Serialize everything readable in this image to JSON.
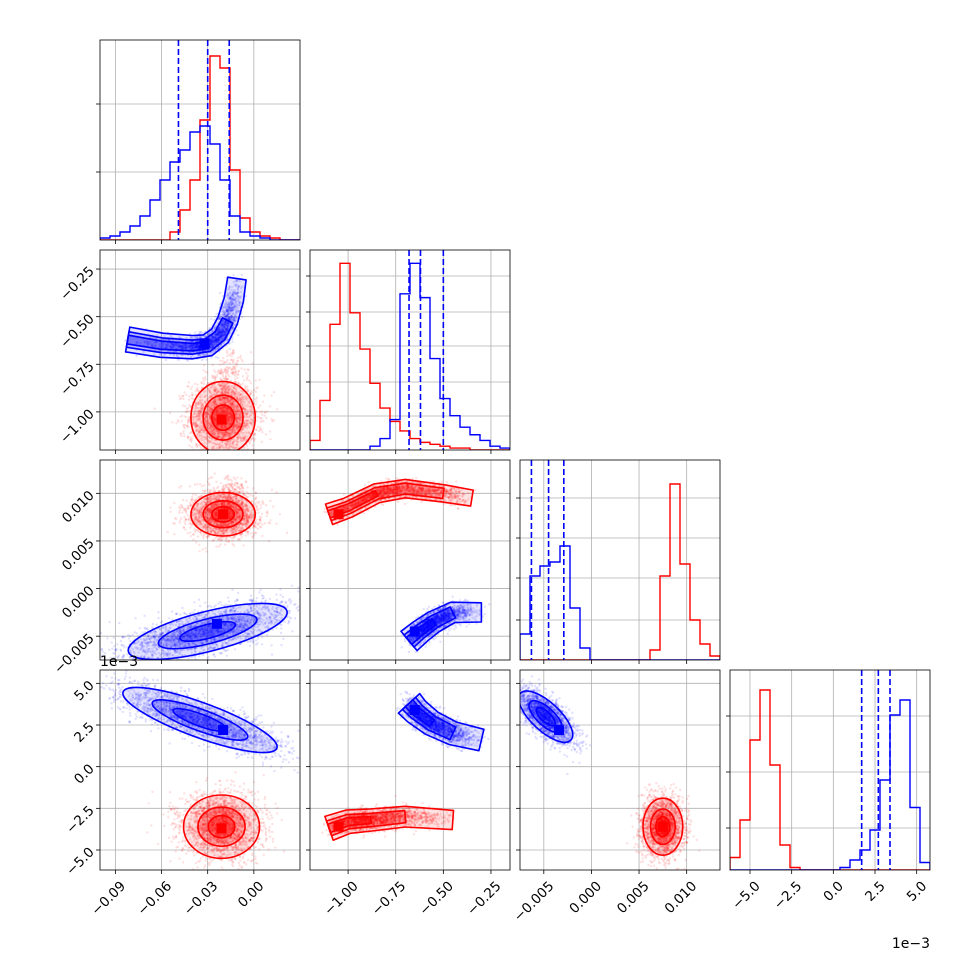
{
  "chart_data": {
    "type": "corner",
    "colors": {
      "blue": "#0000ff",
      "red": "#ff0000"
    },
    "grid": true,
    "parameters": [
      {
        "range": [
          -0.1,
          0.03
        ],
        "ticks": [
          -0.09,
          -0.06,
          -0.03,
          0.0
        ],
        "tick_labels": [
          "−0.09",
          "−0.06",
          "−0.03",
          "0.00"
        ],
        "offset_label": ""
      },
      {
        "range": [
          -1.2,
          -0.15
        ],
        "ticks": [
          -1.0,
          -0.75,
          -0.5,
          -0.25
        ],
        "tick_labels": [
          "−1.00",
          "−0.75",
          "−0.50",
          "−0.25"
        ],
        "offset_label": ""
      },
      {
        "range": [
          -0.0075,
          0.0135
        ],
        "ticks": [
          -0.005,
          0.0,
          0.005,
          0.01
        ],
        "tick_labels": [
          "−0.005",
          "0.000",
          "0.005",
          "0.010"
        ],
        "offset_label": ""
      },
      {
        "range": [
          -6.2,
          5.8
        ],
        "ticks": [
          -5.0,
          -2.5,
          0.0,
          2.5,
          5.0
        ],
        "tick_labels": [
          "−5.0",
          "−2.5",
          "0.0",
          "2.5",
          "5.0"
        ],
        "offset_label": "1e−3"
      }
    ],
    "histograms": [
      {
        "blue": {
          "edges_start": -0.1,
          "bin_width": 0.0065,
          "counts": [
            0.01,
            0.02,
            0.04,
            0.07,
            0.12,
            0.2,
            0.3,
            0.39,
            0.45,
            0.54,
            0.57,
            0.48,
            0.3,
            0.12,
            0.04,
            0.02,
            0.01,
            0.0,
            0.0,
            0.0
          ],
          "quantiles": [
            -0.049,
            -0.03,
            -0.016
          ]
        },
        "red": {
          "edges_start": -0.1,
          "bin_width": 0.0065,
          "counts": [
            0.0,
            0.0,
            0.0,
            0.0,
            0.0,
            0.0,
            0.0,
            0.04,
            0.15,
            0.3,
            0.6,
            0.92,
            0.86,
            0.35,
            0.11,
            0.04,
            0.02,
            0.01,
            0.0,
            0.0
          ],
          "quantiles": []
        },
        "ymax": 1.0
      },
      {
        "blue": {
          "edges_start": -1.2,
          "bin_width": 0.0525,
          "counts": [
            0.0,
            0.0,
            0.0,
            0.0,
            0.0,
            0.0,
            0.02,
            0.06,
            0.16,
            0.82,
            0.98,
            0.8,
            0.48,
            0.27,
            0.18,
            0.12,
            0.08,
            0.05,
            0.02,
            0.01
          ],
          "quantiles": [
            -0.68,
            -0.62,
            -0.5
          ]
        },
        "red": {
          "edges_start": -1.2,
          "bin_width": 0.0525,
          "counts": [
            0.05,
            0.26,
            0.66,
            0.98,
            0.72,
            0.53,
            0.35,
            0.22,
            0.15,
            0.1,
            0.06,
            0.04,
            0.03,
            0.02,
            0.01,
            0.01,
            0.0,
            0.0,
            0.0,
            0.0
          ],
          "quantiles": []
        },
        "ymax": 1.05
      },
      {
        "blue": {
          "edges_start": -0.0075,
          "bin_width": 0.00105,
          "counts": [
            0.13,
            0.42,
            0.47,
            0.49,
            0.57,
            0.26,
            0.06,
            0.0,
            0.0,
            0.0,
            0.0,
            0.0,
            0.0,
            0.0,
            0.0,
            0.0,
            0.0,
            0.0,
            0.0,
            0.0
          ],
          "quantiles": [
            -0.0063,
            -0.0045,
            -0.0029
          ]
        },
        "red": {
          "edges_start": -0.0075,
          "bin_width": 0.00105,
          "counts": [
            0.0,
            0.0,
            0.0,
            0.0,
            0.0,
            0.0,
            0.0,
            0.0,
            0.0,
            0.0,
            0.0,
            0.0,
            0.0,
            0.05,
            0.42,
            0.88,
            0.48,
            0.2,
            0.08,
            0.02
          ],
          "quantiles": []
        },
        "ymax": 1.0
      },
      {
        "blue": {
          "edges_start": -6.2,
          "bin_width": 0.6,
          "counts": [
            0.0,
            0.0,
            0.0,
            0.0,
            0.0,
            0.0,
            0.0,
            0.0,
            0.0,
            0.0,
            0.0,
            0.01,
            0.04,
            0.08,
            0.16,
            0.36,
            0.62,
            0.68,
            0.25,
            0.03
          ],
          "quantiles": [
            1.7,
            2.7,
            3.4
          ]
        },
        "red": {
          "edges_start": -6.2,
          "bin_width": 0.6,
          "counts": [
            0.05,
            0.2,
            0.52,
            0.72,
            0.42,
            0.1,
            0.01,
            0.0,
            0.0,
            0.0,
            0.0,
            0.0,
            0.0,
            0.0,
            0.0,
            0.0,
            0.0,
            0.0,
            0.0,
            0.0
          ],
          "quantiles": []
        },
        "ymax": 0.8
      }
    ],
    "pairs": [
      {
        "row": 1,
        "col": 0,
        "blue": {
          "type": "banana",
          "pts": [
            [
              -0.082,
              -0.62
            ],
            [
              -0.06,
              -0.65
            ],
            [
              -0.04,
              -0.66
            ],
            [
              -0.03,
              -0.65
            ],
            [
              -0.022,
              -0.6
            ],
            [
              -0.017,
              -0.52
            ],
            [
              -0.013,
              -0.41
            ],
            [
              -0.011,
              -0.3
            ]
          ],
          "width": 0.07,
          "peak": [
            -0.032,
            -0.64
          ]
        },
        "red": {
          "type": "blob",
          "center": [
            -0.02,
            -1.03
          ],
          "rx": 0.011,
          "ry": 0.1,
          "tail": [
            -0.015,
            -0.72
          ],
          "peak": [
            -0.021,
            -1.04
          ]
        }
      },
      {
        "row": 2,
        "col": 0,
        "blue": {
          "type": "ellipse",
          "center": [
            -0.03,
            -0.0045
          ],
          "rx": 0.028,
          "ry": 0.0011,
          "angle": 0.25,
          "peak": [
            -0.024,
            -0.0037
          ]
        },
        "red": {
          "type": "blob",
          "center": [
            -0.02,
            0.0078
          ],
          "rx": 0.011,
          "ry": 0.0012,
          "tail": [
            -0.014,
            0.011
          ],
          "peak": [
            -0.02,
            0.0078
          ]
        }
      },
      {
        "row": 3,
        "col": 0,
        "blue": {
          "type": "ellipse",
          "center": [
            -0.035,
            2.8
          ],
          "rx": 0.028,
          "ry": 0.55,
          "angle": -0.35,
          "peak": [
            -0.02,
            2.2
          ]
        },
        "red": {
          "type": "blob",
          "center": [
            -0.021,
            -3.6
          ],
          "rx": 0.013,
          "ry": 1.0,
          "tail": [
            -0.021,
            -2.6
          ],
          "peak": [
            -0.021,
            -3.7
          ]
        }
      },
      {
        "row": 2,
        "col": 1,
        "blue": {
          "type": "banana",
          "pts": [
            [
              -0.68,
              -0.0055
            ],
            [
              -0.62,
              -0.0045
            ],
            [
              -0.55,
              -0.0035
            ],
            [
              -0.45,
              -0.0025
            ],
            [
              -0.3,
              -0.0025
            ]
          ],
          "width": 0.07,
          "peak": [
            -0.65,
            -0.0045
          ]
        },
        "red": {
          "type": "banana",
          "pts": [
            [
              -1.1,
              0.0078
            ],
            [
              -1.0,
              0.0085
            ],
            [
              -0.85,
              0.01
            ],
            [
              -0.7,
              0.0105
            ],
            [
              -0.5,
              0.01
            ],
            [
              -0.35,
              0.0095
            ]
          ],
          "width": 0.06,
          "peak": [
            -1.05,
            0.0078
          ]
        }
      },
      {
        "row": 3,
        "col": 1,
        "blue": {
          "type": "banana",
          "pts": [
            [
              -0.68,
              3.8
            ],
            [
              -0.64,
              3.3
            ],
            [
              -0.56,
              2.6
            ],
            [
              -0.45,
              2.0
            ],
            [
              -0.3,
              1.6
            ]
          ],
          "width": 0.08,
          "peak": [
            -0.65,
            3.4
          ]
        },
        "red": {
          "type": "banana",
          "pts": [
            [
              -1.1,
              -3.7
            ],
            [
              -1.0,
              -3.3
            ],
            [
              -0.88,
              -3.2
            ],
            [
              -0.7,
              -3.0
            ],
            [
              -0.45,
              -3.2
            ]
          ],
          "width": 0.07,
          "peak": [
            -1.05,
            -3.6
          ]
        }
      },
      {
        "row": 3,
        "col": 2,
        "blue": {
          "type": "ellipse",
          "center": [
            -0.0048,
            3.0
          ],
          "rx": 0.0019,
          "ry": 0.45,
          "angle": -0.75,
          "peak": [
            -0.0034,
            2.2
          ]
        },
        "red": {
          "type": "blob",
          "center": [
            0.0075,
            -3.6
          ],
          "rx": 0.0011,
          "ry": 0.9,
          "tail": [
            0.0075,
            -3.6
          ],
          "peak": [
            0.0075,
            -3.6
          ]
        }
      }
    ]
  }
}
